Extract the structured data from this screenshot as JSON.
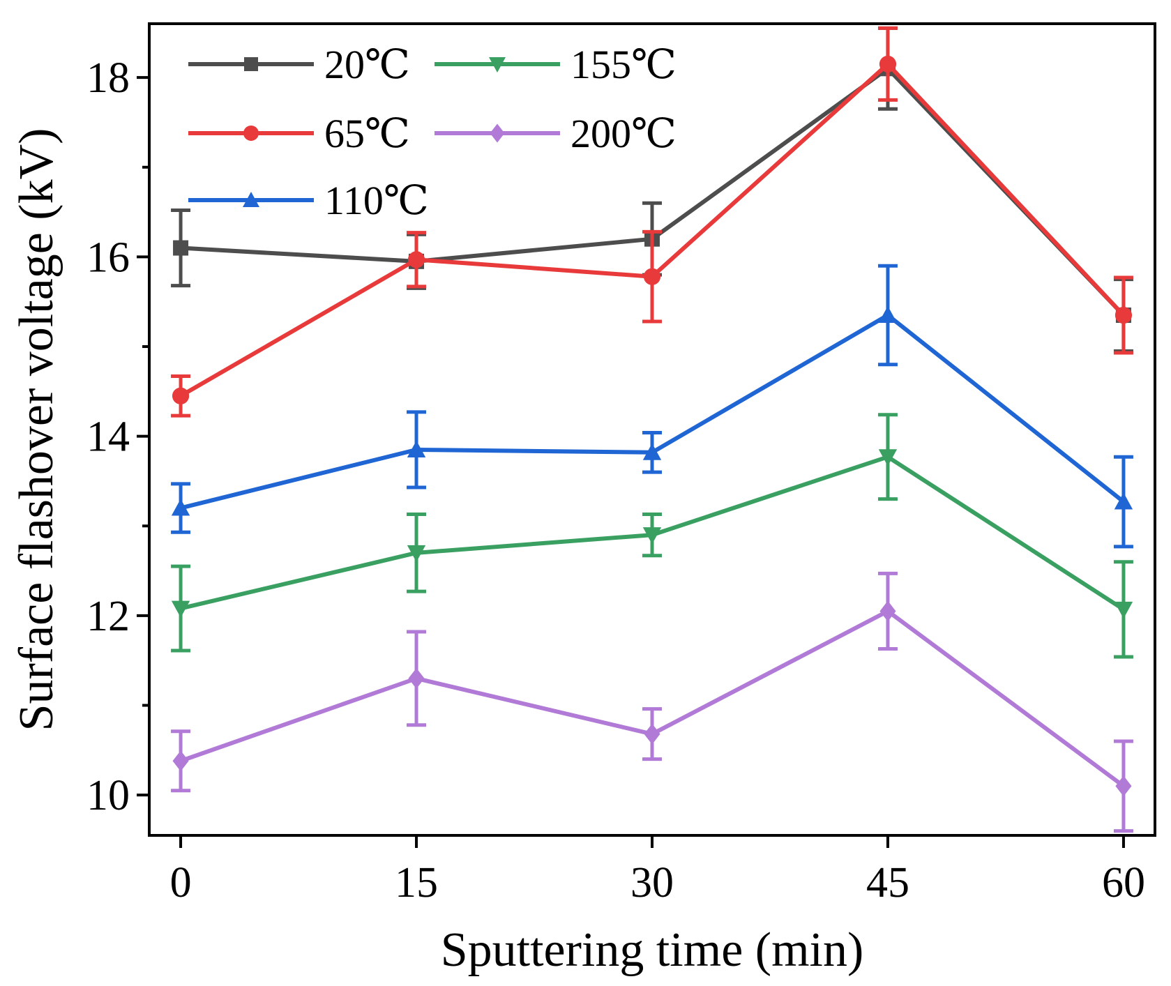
{
  "chart_data": {
    "type": "line",
    "title": "",
    "xlabel": "Sputtering time (min)",
    "ylabel": "Surface flashover voltage (kV)",
    "x": [
      0,
      15,
      30,
      45,
      60
    ],
    "xticks": [
      0,
      15,
      30,
      45,
      60
    ],
    "xtick_labels": [
      "0",
      "15",
      "30",
      "45",
      "60"
    ],
    "xlim": [
      -2,
      62
    ],
    "yticks": [
      10,
      12,
      14,
      16,
      18
    ],
    "ytick_labels": [
      "10",
      "12",
      "14",
      "16",
      "18"
    ],
    "yminor": [
      11,
      13,
      15,
      17
    ],
    "ylim": [
      9.55,
      18.6
    ],
    "grid": false,
    "legend_position": "top-left",
    "series": [
      {
        "name": "20℃",
        "color": "#4d4d4d",
        "marker": "square",
        "values": [
          16.1,
          15.95,
          16.2,
          18.1,
          15.35
        ],
        "errors": [
          0.42,
          0.3,
          0.4,
          0.45,
          0.4
        ]
      },
      {
        "name": "65℃",
        "color": "#e83a3a",
        "marker": "circle",
        "values": [
          14.45,
          15.97,
          15.78,
          18.15,
          15.35
        ],
        "errors": [
          0.22,
          0.3,
          0.5,
          0.4,
          0.42
        ]
      },
      {
        "name": "110℃",
        "color": "#1f66d4",
        "marker": "triangle-up",
        "values": [
          13.2,
          13.85,
          13.82,
          15.35,
          13.27
        ],
        "errors": [
          0.27,
          0.42,
          0.22,
          0.55,
          0.5
        ]
      },
      {
        "name": "155℃",
        "color": "#3aa062",
        "marker": "triangle-down",
        "values": [
          12.08,
          12.7,
          12.9,
          13.77,
          12.07
        ],
        "errors": [
          0.47,
          0.43,
          0.23,
          0.47,
          0.53
        ]
      },
      {
        "name": "200℃",
        "color": "#b07ad6",
        "marker": "diamond",
        "values": [
          10.38,
          11.3,
          10.68,
          12.05,
          10.1
        ],
        "errors": [
          0.33,
          0.52,
          0.28,
          0.42,
          0.5
        ]
      }
    ]
  }
}
